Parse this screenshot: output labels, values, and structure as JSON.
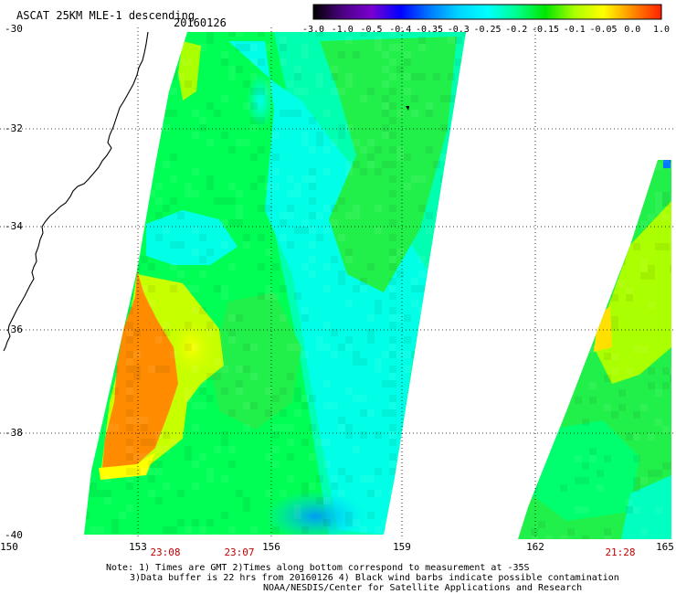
{
  "header": {
    "title": "ASCAT 25KM MLE-1 descending",
    "date": "20160126"
  },
  "colorbar": {
    "tick_labels": [
      "-3.0",
      "-1.0",
      "-0.5",
      "-0.4",
      "-0.35",
      "-0.3",
      "-0.25",
      "-0.2",
      "-0.15",
      "-0.1",
      "-0.05",
      "0.0",
      "1.0"
    ],
    "colors": [
      "#000000",
      "#4b0082",
      "#7a00d0",
      "#0000ff",
      "#0078ff",
      "#00d4ff",
      "#00ffff",
      "#00ff90",
      "#00e600",
      "#aaff00",
      "#ffff00",
      "#ff8c00",
      "#ff2000"
    ]
  },
  "map": {
    "lat_labels": [
      "-30",
      "-32",
      "-34",
      "-36",
      "-38",
      "-40"
    ],
    "lon_labels": [
      "150",
      "153",
      "156",
      "159",
      "162",
      "165"
    ],
    "swath_times": [
      "23:08",
      "23:07",
      "21:28"
    ],
    "time_color": "#c00000",
    "land_color": "#000000",
    "grid_color": "#000000"
  },
  "notes": [
    "Note: 1) Times are GMT 2)Times along bottom correspond to measurement at -35S",
    "3)Data buffer is 22 hrs from 20160126 4) Black wind barbs indicate possible contamination",
    "NOAA/NESDIS/Center for Satellite Applications and Research"
  ]
}
